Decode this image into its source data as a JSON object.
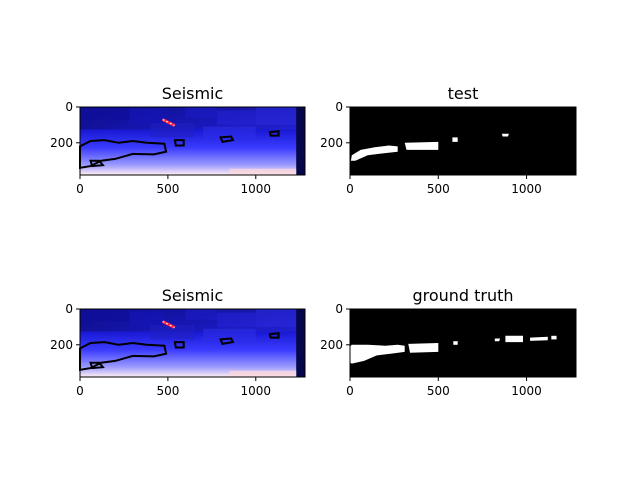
{
  "chart_data": [
    {
      "type": "heatmap",
      "title": "Seismic",
      "xlabel": "",
      "ylabel": "",
      "xlim": [
        0,
        1280
      ],
      "ylim": [
        380,
        0
      ],
      "xticks": [
        0,
        500,
        1000
      ],
      "yticks": [
        0,
        200
      ],
      "overlay": "contours"
    },
    {
      "type": "heatmap",
      "title": "test",
      "xlabel": "",
      "ylabel": "",
      "xlim": [
        0,
        1280
      ],
      "ylim": [
        380,
        0
      ],
      "xticks": [
        0,
        500,
        1000
      ],
      "yticks": [
        0,
        200
      ],
      "colors": [
        "#000000",
        "#ffffff"
      ]
    },
    {
      "type": "heatmap",
      "title": "Seismic",
      "xlabel": "",
      "ylabel": "",
      "xlim": [
        0,
        1280
      ],
      "ylim": [
        380,
        0
      ],
      "xticks": [
        0,
        500,
        1000
      ],
      "yticks": [
        0,
        200
      ],
      "overlay": "contours"
    },
    {
      "type": "heatmap",
      "title": "ground truth",
      "xlabel": "",
      "ylabel": "",
      "xlim": [
        0,
        1280
      ],
      "ylim": [
        380,
        0
      ],
      "xticks": [
        0,
        500,
        1000
      ],
      "yticks": [
        0,
        200
      ],
      "colors": [
        "#000000",
        "#ffffff"
      ]
    }
  ]
}
